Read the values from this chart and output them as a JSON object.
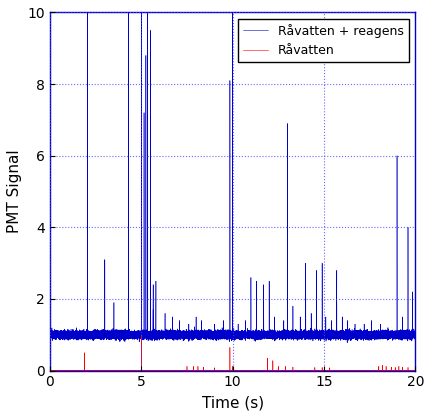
{
  "title": "",
  "xlabel": "Time (s)",
  "ylabel": "PMT Signal",
  "xlim": [
    0,
    20
  ],
  "ylim": [
    0,
    10
  ],
  "xticks": [
    0,
    5,
    10,
    15,
    20
  ],
  "yticks": [
    0,
    2,
    4,
    6,
    8,
    10
  ],
  "blue_label": "Råvatten + reagens",
  "red_label": "Råvatten",
  "blue_color": "#0000CC",
  "red_color": "#FF0000",
  "background_color": "#FFFFFF",
  "grid_color": "#4444FF",
  "figsize": [
    4.31,
    4.17
  ],
  "dpi": 100,
  "blue_baseline": 1.0,
  "blue_noise_std": 0.05,
  "red_noise_std": 0.003,
  "blue_spikes": [
    [
      2.05,
      10.0
    ],
    [
      3.0,
      3.1
    ],
    [
      3.5,
      1.9
    ],
    [
      4.3,
      10.0
    ],
    [
      5.0,
      10.0
    ],
    [
      5.15,
      7.2
    ],
    [
      5.25,
      8.8
    ],
    [
      5.35,
      10.0
    ],
    [
      5.5,
      9.5
    ],
    [
      5.65,
      2.4
    ],
    [
      5.8,
      2.5
    ],
    [
      6.3,
      1.6
    ],
    [
      6.7,
      1.5
    ],
    [
      7.1,
      1.4
    ],
    [
      7.6,
      1.3
    ],
    [
      8.0,
      1.5
    ],
    [
      8.3,
      1.4
    ],
    [
      9.0,
      1.3
    ],
    [
      9.5,
      1.4
    ],
    [
      9.85,
      8.1
    ],
    [
      10.0,
      10.0
    ],
    [
      10.3,
      1.3
    ],
    [
      10.7,
      1.4
    ],
    [
      11.0,
      2.6
    ],
    [
      11.3,
      2.5
    ],
    [
      11.7,
      2.4
    ],
    [
      12.0,
      2.5
    ],
    [
      12.3,
      1.5
    ],
    [
      12.8,
      1.4
    ],
    [
      13.0,
      6.9
    ],
    [
      13.3,
      1.8
    ],
    [
      13.7,
      1.5
    ],
    [
      14.0,
      3.0
    ],
    [
      14.3,
      1.6
    ],
    [
      14.6,
      2.8
    ],
    [
      14.9,
      3.0
    ],
    [
      15.1,
      1.5
    ],
    [
      15.4,
      1.4
    ],
    [
      15.7,
      2.8
    ],
    [
      16.0,
      1.5
    ],
    [
      16.3,
      1.4
    ],
    [
      16.7,
      1.3
    ],
    [
      17.2,
      1.3
    ],
    [
      17.6,
      1.4
    ],
    [
      18.1,
      1.3
    ],
    [
      18.5,
      1.2
    ],
    [
      19.0,
      6.0
    ],
    [
      19.3,
      1.5
    ],
    [
      19.6,
      4.0
    ],
    [
      19.85,
      2.2
    ],
    [
      20.0,
      2.2
    ]
  ],
  "red_spikes": [
    [
      1.9,
      0.5
    ],
    [
      5.0,
      1.0
    ],
    [
      7.5,
      0.12
    ],
    [
      7.85,
      0.12
    ],
    [
      8.1,
      0.12
    ],
    [
      8.4,
      0.1
    ],
    [
      9.0,
      0.08
    ],
    [
      9.85,
      0.65
    ],
    [
      10.0,
      0.12
    ],
    [
      11.9,
      0.35
    ],
    [
      12.2,
      0.28
    ],
    [
      12.5,
      0.12
    ],
    [
      12.9,
      0.12
    ],
    [
      13.3,
      0.1
    ],
    [
      14.5,
      0.09
    ],
    [
      14.9,
      0.09
    ],
    [
      15.3,
      0.08
    ],
    [
      18.0,
      0.12
    ],
    [
      18.2,
      0.15
    ],
    [
      18.4,
      0.12
    ],
    [
      18.7,
      0.1
    ],
    [
      18.9,
      0.09
    ],
    [
      19.1,
      0.12
    ],
    [
      19.3,
      0.1
    ],
    [
      19.6,
      0.09
    ]
  ]
}
